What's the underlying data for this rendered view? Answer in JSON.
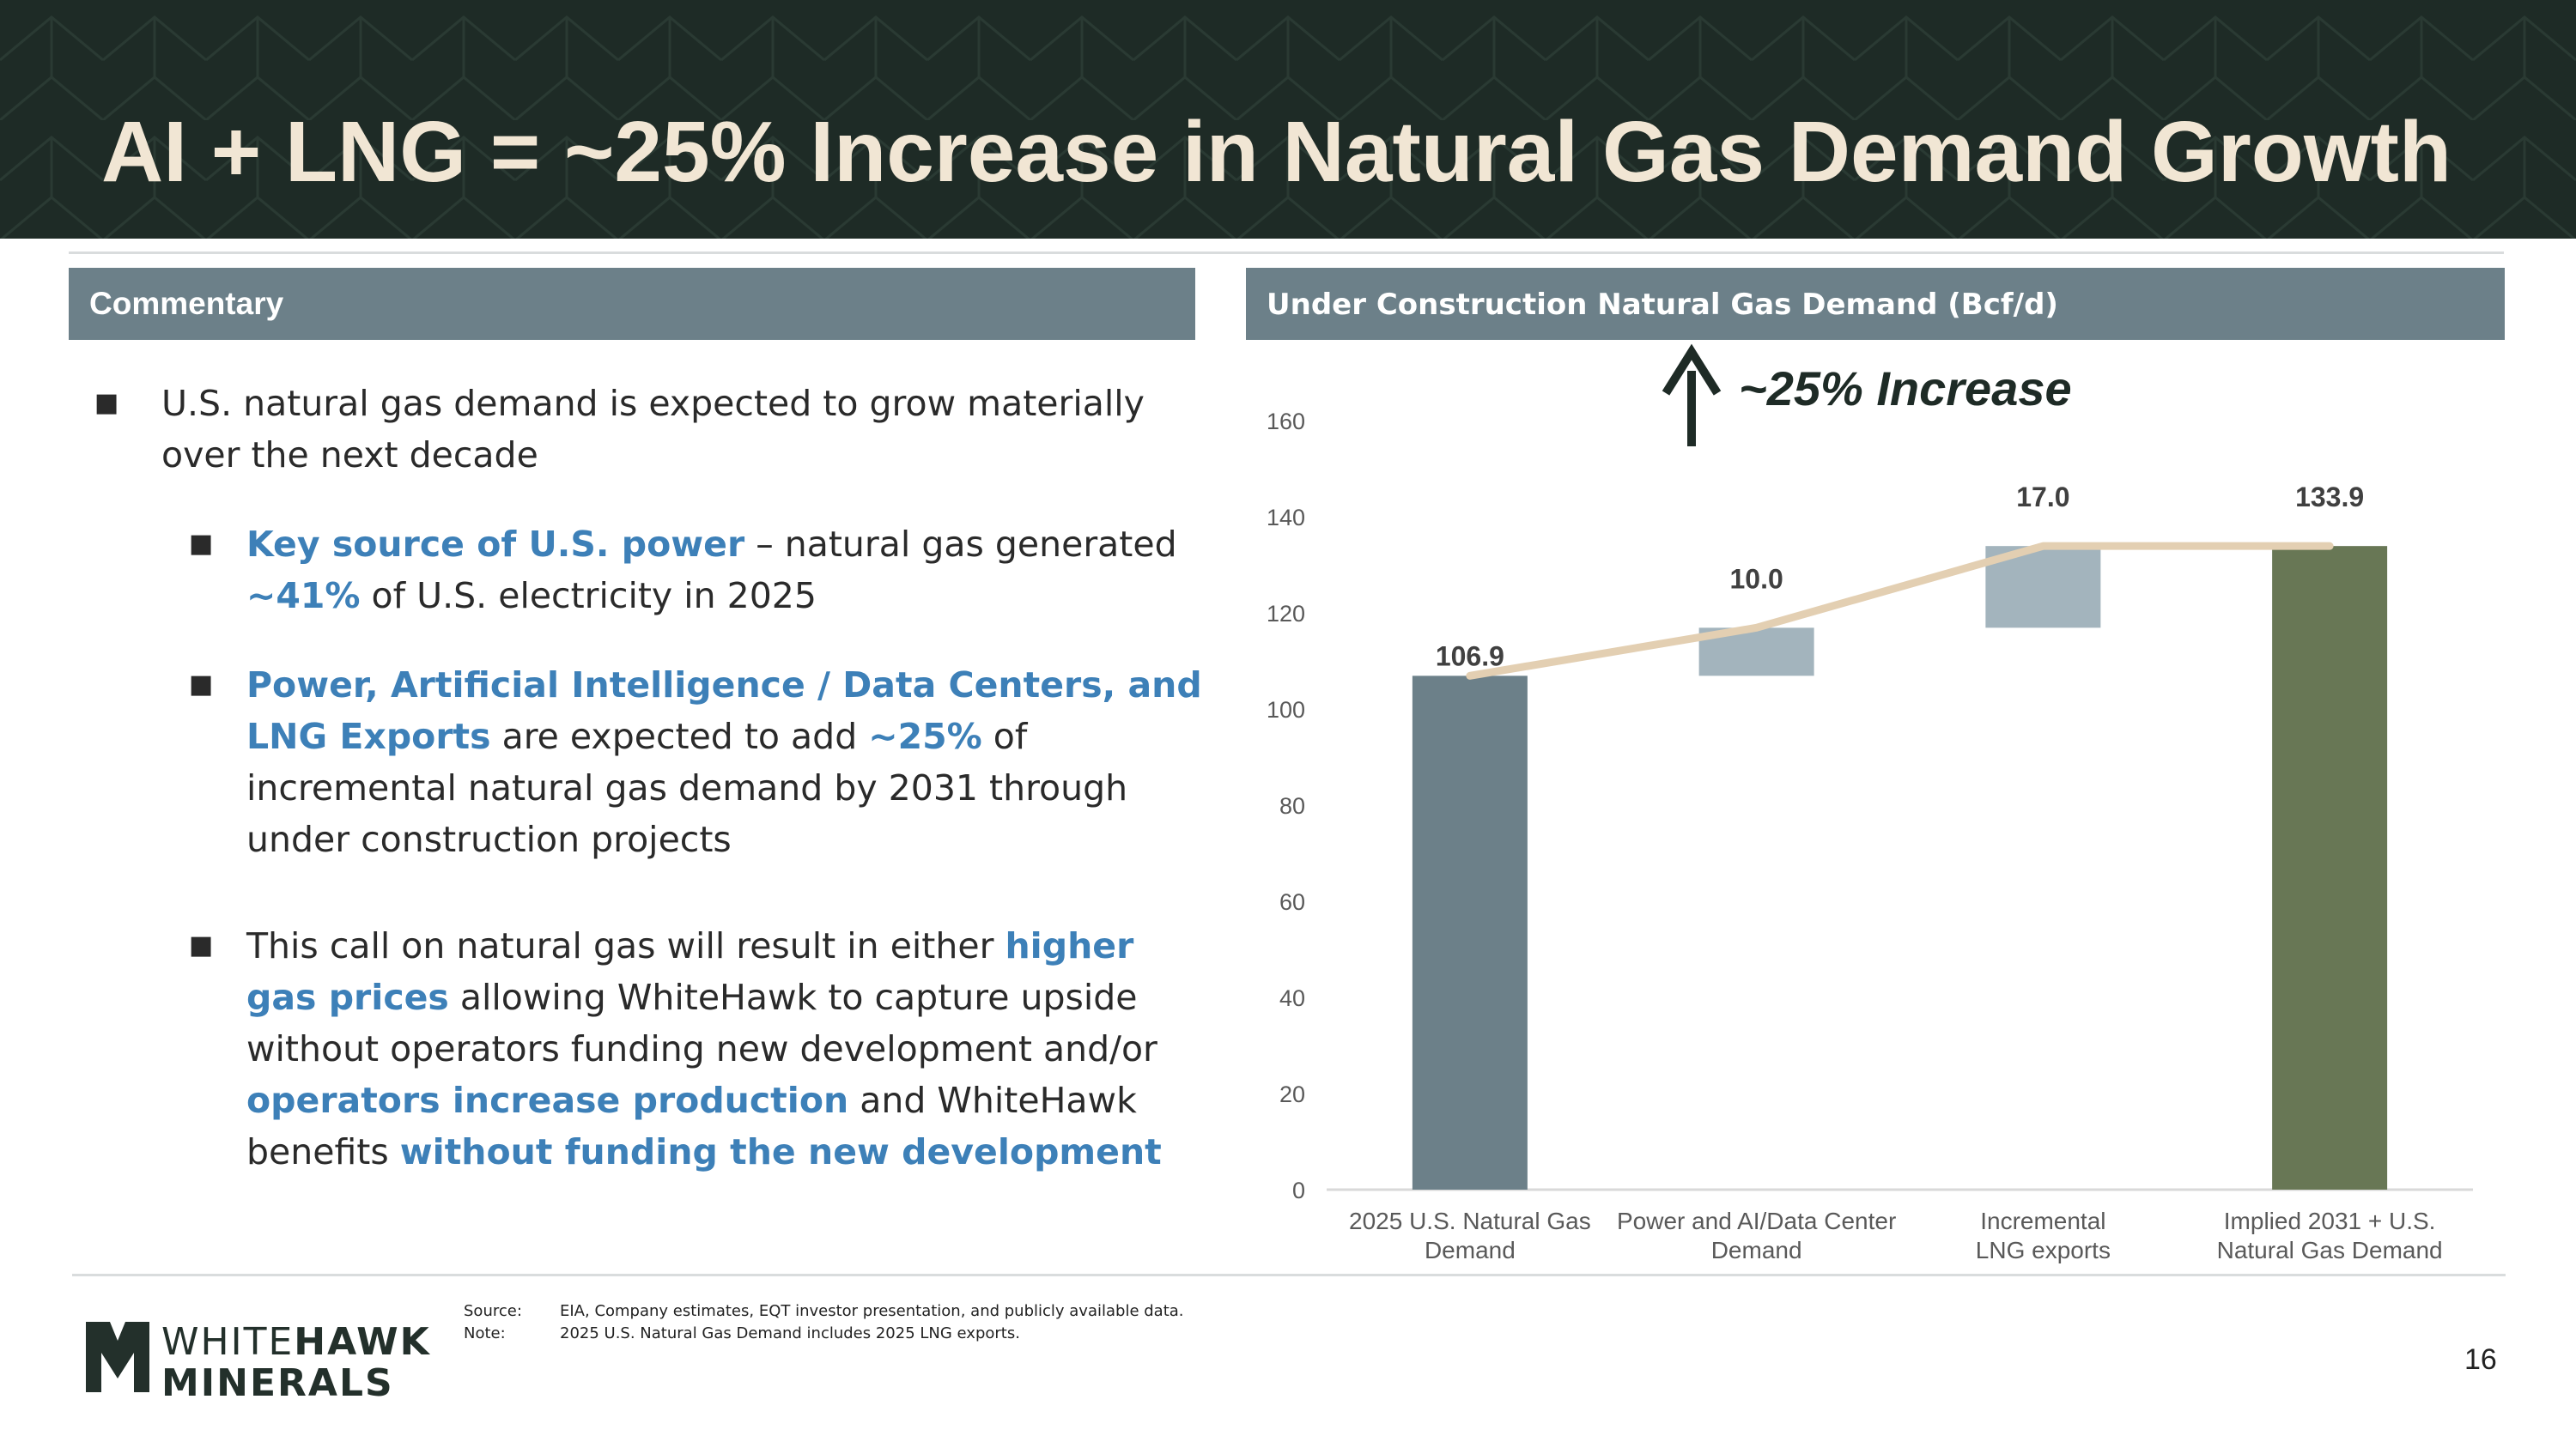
{
  "header": {
    "title": "AI + LNG = ~25% Increase in Natural Gas Demand Growth"
  },
  "commentary": {
    "heading": "Commentary",
    "bullets": [
      {
        "text": "U.S. natural gas demand is expected to grow materially over the next decade"
      },
      {
        "p1": "Key source of U.S. power",
        "p2": " – natural gas generated ",
        "p3": "~41%",
        "p4": " of U.S. electricity in 2025"
      },
      {
        "p1": "Power, Artificial Intelligence / Data Centers, and LNG Exports",
        "p2": " are expected to add ",
        "p3": "~25%",
        "p4": " of incremental natural gas demand by 2031 through under construction projects"
      },
      {
        "p1": "This call on natural gas will result in either ",
        "p2": "higher gas prices",
        "p3": " allowing WhiteHawk to capture upside without operators funding new development and/or ",
        "p4": "operators increase production",
        "p5": " and WhiteHawk benefits ",
        "p6": "without funding the new development"
      }
    ]
  },
  "chart_panel": {
    "heading": "Under Construction Natural Gas Demand (Bcf/d)"
  },
  "chart_data": {
    "type": "bar",
    "subtype": "waterfall",
    "categories": [
      [
        "2025 U.S. Natural Gas",
        "Demand"
      ],
      [
        "Power and AI/Data Center",
        "Demand"
      ],
      [
        "Incremental",
        "LNG exports"
      ],
      [
        "Implied 2031 + U.S.",
        "Natural Gas Demand"
      ]
    ],
    "bars": [
      {
        "base": 0,
        "value": 106.9,
        "label": "106.9",
        "kind": "total",
        "color": "#6c8089"
      },
      {
        "base": 106.9,
        "value": 10.0,
        "label": "10.0",
        "kind": "increment",
        "color": "#a3b4bd"
      },
      {
        "base": 116.9,
        "value": 17.0,
        "label": "17.0",
        "kind": "increment",
        "color": "#a3b4bd"
      },
      {
        "base": 0,
        "value": 133.9,
        "label": "133.9",
        "kind": "total",
        "color": "#687755"
      }
    ],
    "trend_line": {
      "x": [
        0,
        1,
        2,
        3
      ],
      "y": [
        106.9,
        116.9,
        133.9,
        133.9
      ],
      "color": "#e3cfb2"
    },
    "annotation": {
      "text": "~25% Increase",
      "arrow": "up",
      "color": "#1e2b26"
    },
    "ylim": [
      0,
      160
    ],
    "yticks": [
      0,
      20,
      40,
      60,
      80,
      100,
      120,
      140,
      160
    ],
    "grid": false,
    "legend": "none"
  },
  "footer": {
    "source_label": "Source:",
    "source_text": "EIA, Company estimates, EQT investor presentation, and publicly available data.",
    "note_label": "Note:",
    "note_text": "2025 U.S. Natural Gas Demand includes 2025 LNG exports.",
    "logo_line1_a": "WHITE",
    "logo_line1_b": "HAWK",
    "logo_line2": "MINERALS",
    "page_number": "16"
  }
}
